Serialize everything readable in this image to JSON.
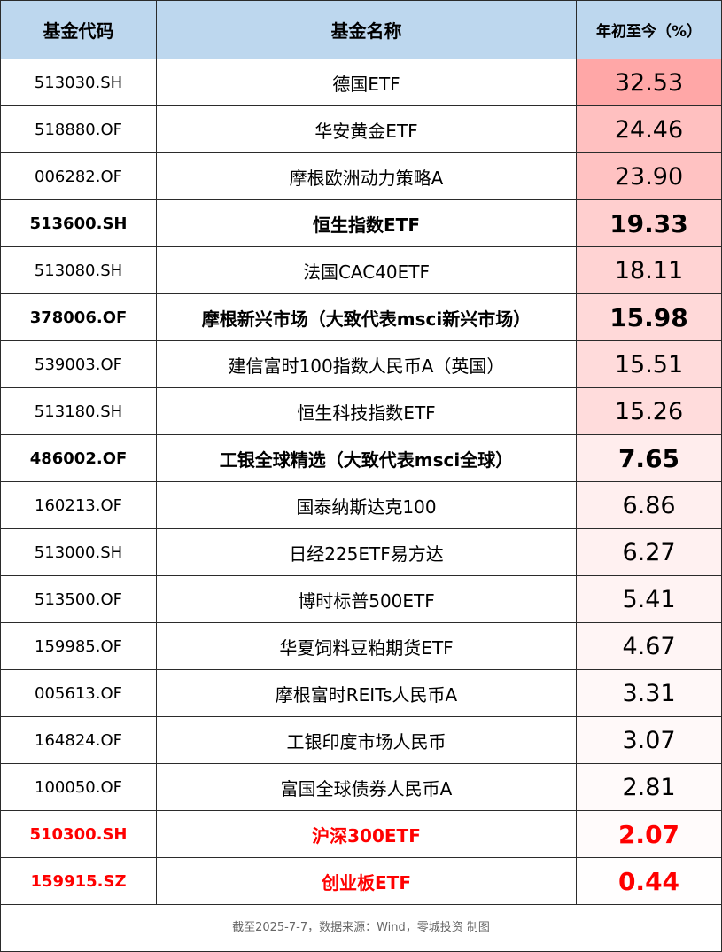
{
  "header": {
    "code": "基金代码",
    "name": "基金名称",
    "ytd": "年初至今（%）"
  },
  "rows": [
    {
      "code": "513030.SH",
      "name": "德国ETF",
      "ytd": "32.53",
      "bg": "#ffa7a7",
      "style": "normal"
    },
    {
      "code": "518880.OF",
      "name": "华安黄金ETF",
      "ytd": "24.46",
      "bg": "#ffc0c0",
      "style": "normal"
    },
    {
      "code": "006282.OF",
      "name": "摩根欧洲动力策略A",
      "ytd": "23.90",
      "bg": "#ffc2c2",
      "style": "normal"
    },
    {
      "code": "513600.SH",
      "name": "恒生指数ETF",
      "ytd": "19.33",
      "bg": "#ffcfcf",
      "style": "bold"
    },
    {
      "code": "513080.SH",
      "name": "法国CAC40ETF",
      "ytd": "18.11",
      "bg": "#ffd3d3",
      "style": "normal"
    },
    {
      "code": "378006.OF",
      "name": "摩根新兴市场（大致代表msci新兴市场）",
      "ytd": "15.98",
      "bg": "#ffd9d9",
      "style": "bold"
    },
    {
      "code": "539003.OF",
      "name": "建信富时100指数人民币A（英国）",
      "ytd": "15.51",
      "bg": "#ffdbdb",
      "style": "normal"
    },
    {
      "code": "513180.SH",
      "name": "恒生科技指数ETF",
      "ytd": "15.26",
      "bg": "#ffdcdc",
      "style": "normal"
    },
    {
      "code": "486002.OF",
      "name": "工银全球精选（大致代表msci全球）",
      "ytd": "7.65",
      "bg": "#ffeded",
      "style": "bold"
    },
    {
      "code": "160213.OF",
      "name": "国泰纳斯达克100",
      "ytd": "6.86",
      "bg": "#ffefef",
      "style": "normal"
    },
    {
      "code": "513000.SH",
      "name": "日经225ETF易方达",
      "ytd": "6.27",
      "bg": "#fff1f1",
      "style": "normal"
    },
    {
      "code": "513500.OF",
      "name": "博时标普500ETF",
      "ytd": "5.41",
      "bg": "#fff3f3",
      "style": "normal"
    },
    {
      "code": "159985.OF",
      "name": "华夏饲料豆粕期货ETF",
      "ytd": "4.67",
      "bg": "#fff5f5",
      "style": "normal"
    },
    {
      "code": "005613.OF",
      "name": "摩根富时REITs人民币A",
      "ytd": "3.31",
      "bg": "#fff8f8",
      "style": "normal"
    },
    {
      "code": "164824.OF",
      "name": "工银印度市场人民币",
      "ytd": "3.07",
      "bg": "#fff9f9",
      "style": "normal"
    },
    {
      "code": "100050.OF",
      "name": "富国全球债券人民币A",
      "ytd": "2.81",
      "bg": "#fffafa",
      "style": "normal"
    },
    {
      "code": "510300.SH",
      "name": "沪深300ETF",
      "ytd": "2.07",
      "bg": "#fffbfb",
      "style": "red"
    },
    {
      "code": "159915.SZ",
      "name": "创业板ETF",
      "ytd": "0.44",
      "bg": "#fffefe",
      "style": "red"
    }
  ],
  "footer": "截至2025-7-7，数据来源：Wind，零城投资 制图"
}
